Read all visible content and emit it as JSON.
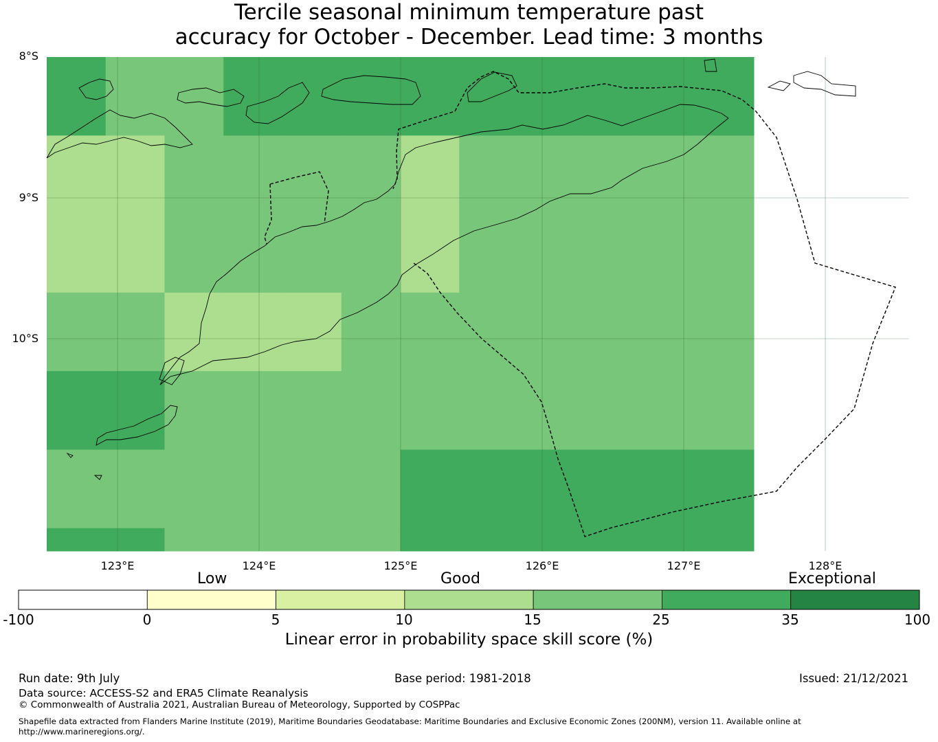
{
  "title": {
    "line1": "Tercile seasonal minimum temperature past",
    "line2": "accuracy for October - December. Lead time: 3 months"
  },
  "map": {
    "lat_labels": [
      "8°S",
      "9°S",
      "10°S"
    ],
    "lon_labels": [
      "123°E",
      "124°E",
      "125°E",
      "126°E",
      "127°E",
      "128°E"
    ],
    "grid_lon_start": 122.5,
    "grid_lat_start": -8.0,
    "cell_deg": 0.8333,
    "cell_colors_legend_bins": [
      [
        "25-35",
        "15-25",
        "15-25",
        "25-35",
        "25-35",
        "25-35",
        "25-35",
        "25-35",
        "25-35",
        "25-35",
        "25-35",
        "25-35"
      ],
      [
        "10-15",
        "10-15",
        "15-25",
        "15-25",
        "15-25",
        "15-25",
        "10-15",
        "15-25",
        "15-25",
        "15-25",
        "15-25",
        "15-25"
      ],
      [
        "10-15",
        "10-15",
        "15-25",
        "15-25",
        "15-25",
        "15-25",
        "10-15",
        "15-25",
        "15-25",
        "15-25",
        "15-25",
        "15-25"
      ],
      [
        "15-25",
        "15-25",
        "10-15",
        "10-15",
        "10-15",
        "15-25",
        "15-25",
        "15-25",
        "15-25",
        "15-25",
        "15-25",
        "15-25"
      ],
      [
        "25-35",
        "25-35",
        "15-25",
        "15-25",
        "15-25",
        "15-25",
        "15-25",
        "15-25",
        "15-25",
        "15-25",
        "15-25",
        "15-25"
      ],
      [
        "15-25",
        "15-25",
        "15-25",
        "15-25",
        "15-25",
        "15-25",
        "25-35",
        "25-35",
        "25-35",
        "25-35",
        "25-35",
        "25-35"
      ],
      [
        "25-35",
        "25-35",
        "15-25",
        "15-25",
        "15-25",
        "15-25",
        "25-35",
        "25-35",
        "25-35",
        "25-35",
        "25-35",
        "25-35"
      ]
    ]
  },
  "colorbar": {
    "categories": [
      "Low",
      "Good",
      "Exceptional"
    ],
    "ticks": [
      "-100",
      "0",
      "5",
      "10",
      "15",
      "25",
      "35",
      "100"
    ],
    "colors": [
      "#ffffff",
      "#ffffcc",
      "#d9f0a3",
      "#addd8e",
      "#78c679",
      "#41ab5d",
      "#238443"
    ],
    "label": "Linear error in probability space skill score (%)"
  },
  "footer": {
    "run_date": "Run date: 9th July",
    "base_period": "Base period: 1981-2018",
    "issued": "Issued: 21/12/2021",
    "data_source": "Data source: ACCESS-S2 and ERA5 Climate Reanalysis",
    "copyright": "© Commonwealth of Australia 2021, Australian Bureau of Meteorology, Supported by COSPPac",
    "shapefile_1": "Shapefile data extracted from Flanders Marine Institute (2019), Maritime Boundaries Geodatabase: Maritime Boundaries and Exclusive Economic Zones (200NM), version 11. Available online at",
    "shapefile_2": "http://www.marineregions.org/."
  }
}
